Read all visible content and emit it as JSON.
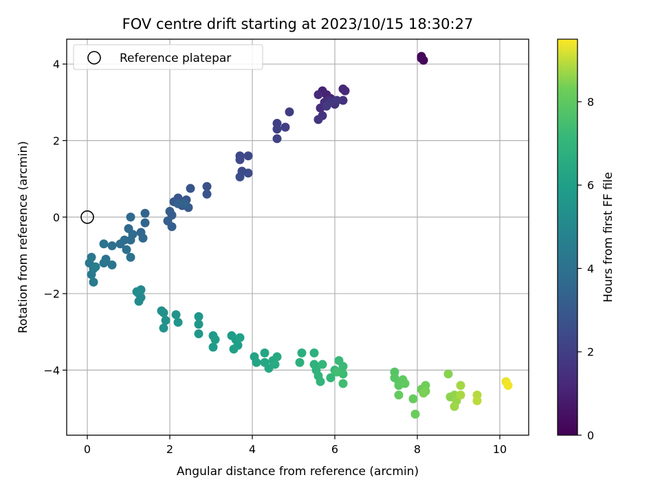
{
  "chart_data": {
    "type": "scatter",
    "title": "FOV centre drift starting at 2023/10/15 18:30:27",
    "xlabel": "Angular distance from reference (arcmin)",
    "ylabel": "Rotation from reference (arcmin)",
    "xlim": [
      -0.5,
      10.7
    ],
    "ylim": [
      -5.7,
      4.65
    ],
    "xticks": [
      "0",
      "2",
      "4",
      "6",
      "8",
      "10"
    ],
    "yticks": [
      "−4",
      "−2",
      "0",
      "2",
      "4"
    ],
    "grid": true,
    "legend": {
      "placement": "top-left",
      "entries": [
        "Reference platepar"
      ]
    },
    "reference_point": {
      "x": 0,
      "y": 0
    },
    "colorbar": {
      "label": "Hours from first FF file",
      "colormap": "viridis",
      "range": [
        0,
        9.5
      ],
      "ticks": [
        "0",
        "2",
        "4",
        "6",
        "8"
      ]
    },
    "points": [
      {
        "x": 8.1,
        "y": 4.2,
        "t": 0.1
      },
      {
        "x": 8.15,
        "y": 4.1,
        "t": 0.15
      },
      {
        "x": 8.1,
        "y": 4.15,
        "t": 0.2
      },
      {
        "x": 5.7,
        "y": 3.3,
        "t": 1.0
      },
      {
        "x": 5.8,
        "y": 3.2,
        "t": 1.05
      },
      {
        "x": 5.9,
        "y": 3.1,
        "t": 1.1
      },
      {
        "x": 6.0,
        "y": 3.0,
        "t": 1.15
      },
      {
        "x": 6.2,
        "y": 3.35,
        "t": 1.2
      },
      {
        "x": 6.25,
        "y": 3.3,
        "t": 1.25
      },
      {
        "x": 5.6,
        "y": 3.2,
        "t": 1.3
      },
      {
        "x": 5.65,
        "y": 2.85,
        "t": 1.35
      },
      {
        "x": 5.75,
        "y": 3.0,
        "t": 1.4
      },
      {
        "x": 5.85,
        "y": 3.05,
        "t": 1.45
      },
      {
        "x": 6.0,
        "y": 2.95,
        "t": 1.5
      },
      {
        "x": 6.2,
        "y": 3.05,
        "t": 1.55
      },
      {
        "x": 5.7,
        "y": 2.65,
        "t": 1.6
      },
      {
        "x": 5.6,
        "y": 2.55,
        "t": 1.65
      },
      {
        "x": 5.9,
        "y": 3.0,
        "t": 1.7
      },
      {
        "x": 6.05,
        "y": 3.05,
        "t": 1.75
      },
      {
        "x": 5.8,
        "y": 2.9,
        "t": 1.8
      },
      {
        "x": 4.9,
        "y": 2.75,
        "t": 1.9
      },
      {
        "x": 4.6,
        "y": 2.45,
        "t": 2.0
      },
      {
        "x": 4.8,
        "y": 2.35,
        "t": 2.05
      },
      {
        "x": 4.6,
        "y": 2.3,
        "t": 2.1
      },
      {
        "x": 4.6,
        "y": 2.05,
        "t": 2.15
      },
      {
        "x": 3.7,
        "y": 1.6,
        "t": 2.3
      },
      {
        "x": 3.9,
        "y": 1.6,
        "t": 2.35
      },
      {
        "x": 3.7,
        "y": 1.5,
        "t": 2.4
      },
      {
        "x": 3.75,
        "y": 1.2,
        "t": 2.45
      },
      {
        "x": 3.9,
        "y": 1.15,
        "t": 2.5
      },
      {
        "x": 3.7,
        "y": 1.05,
        "t": 2.55
      },
      {
        "x": 2.9,
        "y": 0.8,
        "t": 2.7
      },
      {
        "x": 2.9,
        "y": 0.6,
        "t": 2.75
      },
      {
        "x": 2.5,
        "y": 0.75,
        "t": 2.8
      },
      {
        "x": 2.2,
        "y": 0.5,
        "t": 2.85
      },
      {
        "x": 2.4,
        "y": 0.45,
        "t": 2.9
      },
      {
        "x": 2.1,
        "y": 0.4,
        "t": 2.95
      },
      {
        "x": 2.3,
        "y": 0.3,
        "t": 3.0
      },
      {
        "x": 2.45,
        "y": 0.25,
        "t": 3.05
      },
      {
        "x": 2.0,
        "y": 0.15,
        "t": 3.1
      },
      {
        "x": 2.05,
        "y": 0.05,
        "t": 3.15
      },
      {
        "x": 1.95,
        "y": -0.1,
        "t": 3.2
      },
      {
        "x": 2.05,
        "y": -0.25,
        "t": 3.25
      },
      {
        "x": 2.2,
        "y": 0.35,
        "t": 3.3
      },
      {
        "x": 2.35,
        "y": 0.35,
        "t": 3.35
      },
      {
        "x": 1.4,
        "y": 0.1,
        "t": 3.4
      },
      {
        "x": 1.4,
        "y": -0.15,
        "t": 3.45
      },
      {
        "x": 1.3,
        "y": -0.4,
        "t": 3.5
      },
      {
        "x": 1.35,
        "y": -0.55,
        "t": 3.55
      },
      {
        "x": 1.05,
        "y": 0.0,
        "t": 3.6
      },
      {
        "x": 1.0,
        "y": -0.3,
        "t": 3.65
      },
      {
        "x": 1.1,
        "y": -0.45,
        "t": 3.7
      },
      {
        "x": 1.05,
        "y": -0.6,
        "t": 3.75
      },
      {
        "x": 0.9,
        "y": -0.6,
        "t": 3.8
      },
      {
        "x": 0.8,
        "y": -0.7,
        "t": 3.85
      },
      {
        "x": 0.6,
        "y": -0.75,
        "t": 3.9
      },
      {
        "x": 0.95,
        "y": -0.85,
        "t": 3.95
      },
      {
        "x": 1.05,
        "y": -1.05,
        "t": 4.0
      },
      {
        "x": 0.4,
        "y": -0.7,
        "t": 4.05
      },
      {
        "x": 0.45,
        "y": -1.1,
        "t": 4.1
      },
      {
        "x": 0.4,
        "y": -1.2,
        "t": 4.15
      },
      {
        "x": 0.6,
        "y": -1.25,
        "t": 4.2
      },
      {
        "x": 0.1,
        "y": -1.05,
        "t": 4.25
      },
      {
        "x": 0.05,
        "y": -1.2,
        "t": 4.3
      },
      {
        "x": 0.15,
        "y": -1.35,
        "t": 4.35
      },
      {
        "x": 0.1,
        "y": -1.5,
        "t": 4.4
      },
      {
        "x": 0.15,
        "y": -1.7,
        "t": 4.45
      },
      {
        "x": 0.2,
        "y": -1.3,
        "t": 4.5
      },
      {
        "x": 1.3,
        "y": -1.9,
        "t": 5.0
      },
      {
        "x": 1.25,
        "y": -2.0,
        "t": 5.05
      },
      {
        "x": 1.3,
        "y": -2.1,
        "t": 5.1
      },
      {
        "x": 1.25,
        "y": -2.2,
        "t": 5.15
      },
      {
        "x": 1.2,
        "y": -1.95,
        "t": 5.2
      },
      {
        "x": 1.8,
        "y": -2.45,
        "t": 5.3
      },
      {
        "x": 1.85,
        "y": -2.5,
        "t": 5.35
      },
      {
        "x": 1.9,
        "y": -2.7,
        "t": 5.4
      },
      {
        "x": 1.85,
        "y": -2.9,
        "t": 5.45
      },
      {
        "x": 2.15,
        "y": -2.55,
        "t": 5.5
      },
      {
        "x": 2.2,
        "y": -2.75,
        "t": 5.55
      },
      {
        "x": 2.7,
        "y": -2.6,
        "t": 5.6
      },
      {
        "x": 2.7,
        "y": -2.8,
        "t": 5.65
      },
      {
        "x": 2.7,
        "y": -3.05,
        "t": 5.7
      },
      {
        "x": 3.05,
        "y": -3.1,
        "t": 5.75
      },
      {
        "x": 3.05,
        "y": -3.4,
        "t": 5.8
      },
      {
        "x": 3.1,
        "y": -3.2,
        "t": 5.85
      },
      {
        "x": 3.5,
        "y": -3.1,
        "t": 5.9
      },
      {
        "x": 3.6,
        "y": -3.2,
        "t": 5.95
      },
      {
        "x": 3.65,
        "y": -3.35,
        "t": 6.0
      },
      {
        "x": 3.55,
        "y": -3.45,
        "t": 6.05
      },
      {
        "x": 3.7,
        "y": -3.15,
        "t": 6.1
      },
      {
        "x": 4.05,
        "y": -3.65,
        "t": 6.15
      },
      {
        "x": 4.1,
        "y": -3.8,
        "t": 6.2
      },
      {
        "x": 4.3,
        "y": -3.55,
        "t": 6.25
      },
      {
        "x": 4.3,
        "y": -3.8,
        "t": 6.3
      },
      {
        "x": 4.4,
        "y": -3.95,
        "t": 6.35
      },
      {
        "x": 4.5,
        "y": -3.75,
        "t": 6.4
      },
      {
        "x": 4.6,
        "y": -3.65,
        "t": 6.45
      },
      {
        "x": 4.55,
        "y": -3.85,
        "t": 6.5
      },
      {
        "x": 5.2,
        "y": -3.55,
        "t": 6.7
      },
      {
        "x": 5.15,
        "y": -3.8,
        "t": 6.75
      },
      {
        "x": 5.5,
        "y": -3.55,
        "t": 6.8
      },
      {
        "x": 5.5,
        "y": -3.85,
        "t": 6.85
      },
      {
        "x": 5.55,
        "y": -4.0,
        "t": 6.9
      },
      {
        "x": 5.6,
        "y": -4.15,
        "t": 6.95
      },
      {
        "x": 5.65,
        "y": -4.3,
        "t": 7.0
      },
      {
        "x": 5.7,
        "y": -3.85,
        "t": 7.05
      },
      {
        "x": 5.9,
        "y": -4.2,
        "t": 7.1
      },
      {
        "x": 6.0,
        "y": -4.0,
        "t": 7.15
      },
      {
        "x": 6.1,
        "y": -3.75,
        "t": 7.2
      },
      {
        "x": 6.2,
        "y": -3.9,
        "t": 7.25
      },
      {
        "x": 6.2,
        "y": -4.1,
        "t": 7.3
      },
      {
        "x": 6.2,
        "y": -4.35,
        "t": 7.35
      },
      {
        "x": 6.05,
        "y": -4.05,
        "t": 7.4
      },
      {
        "x": 7.45,
        "y": -4.05,
        "t": 7.8
      },
      {
        "x": 7.45,
        "y": -4.2,
        "t": 7.85
      },
      {
        "x": 7.55,
        "y": -4.3,
        "t": 7.9
      },
      {
        "x": 7.55,
        "y": -4.4,
        "t": 7.95
      },
      {
        "x": 7.65,
        "y": -4.25,
        "t": 8.0
      },
      {
        "x": 7.7,
        "y": -4.35,
        "t": 8.05
      },
      {
        "x": 7.55,
        "y": -4.65,
        "t": 8.1
      },
      {
        "x": 7.9,
        "y": -4.75,
        "t": 8.15
      },
      {
        "x": 7.95,
        "y": -5.15,
        "t": 8.2
      },
      {
        "x": 8.1,
        "y": -4.5,
        "t": 8.25
      },
      {
        "x": 8.2,
        "y": -4.4,
        "t": 8.3
      },
      {
        "x": 8.2,
        "y": -4.55,
        "t": 8.35
      },
      {
        "x": 8.15,
        "y": -4.6,
        "t": 8.4
      },
      {
        "x": 8.75,
        "y": -4.1,
        "t": 8.5
      },
      {
        "x": 8.8,
        "y": -4.7,
        "t": 8.55
      },
      {
        "x": 8.9,
        "y": -4.65,
        "t": 8.6
      },
      {
        "x": 8.95,
        "y": -4.8,
        "t": 8.65
      },
      {
        "x": 8.9,
        "y": -4.95,
        "t": 8.7
      },
      {
        "x": 9.05,
        "y": -4.4,
        "t": 8.75
      },
      {
        "x": 9.05,
        "y": -4.65,
        "t": 8.8
      },
      {
        "x": 9.45,
        "y": -4.65,
        "t": 8.9
      },
      {
        "x": 9.45,
        "y": -4.8,
        "t": 8.95
      },
      {
        "x": 10.15,
        "y": -4.3,
        "t": 9.35
      },
      {
        "x": 10.2,
        "y": -4.4,
        "t": 9.4
      }
    ]
  }
}
